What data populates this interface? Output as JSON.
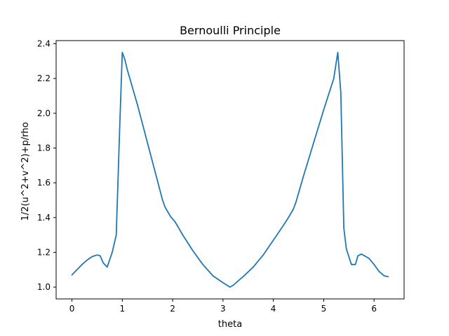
{
  "chart_data": {
    "type": "line",
    "title": "Bernoulli Principle",
    "xlabel": "theta",
    "ylabel": "1/2(u^2+v^2)+p/rho",
    "xlim": [
      -0.314,
      6.597
    ],
    "ylim": [
      0.932,
      2.418
    ],
    "x_ticks": [
      0,
      1,
      2,
      3,
      4,
      5,
      6
    ],
    "x_tick_labels": [
      "0",
      "1",
      "2",
      "3",
      "4",
      "5",
      "6"
    ],
    "y_ticks": [
      1.0,
      1.2,
      1.4,
      1.6,
      1.8,
      2.0,
      2.2,
      2.4
    ],
    "y_tick_labels": [
      "1.0",
      "1.2",
      "1.4",
      "1.6",
      "1.8",
      "2.0",
      "2.2",
      "2.4"
    ],
    "grid": false,
    "legend": "none",
    "series": [
      {
        "color": "#1f77b4",
        "x": [
          0.0,
          0.1,
          0.2,
          0.3,
          0.4,
          0.5,
          0.56,
          0.62,
          0.7,
          0.8,
          0.88,
          0.95,
          1.0,
          1.05,
          1.1,
          1.2,
          1.3,
          1.4,
          1.5,
          1.6,
          1.7,
          1.8,
          1.85,
          1.9,
          1.96,
          2.05,
          2.2,
          2.4,
          2.6,
          2.8,
          3.0,
          3.14,
          3.2,
          3.4,
          3.6,
          3.8,
          4.0,
          4.2,
          4.3,
          4.4,
          4.45,
          4.6,
          4.8,
          5.0,
          5.2,
          5.28,
          5.34,
          5.4,
          5.45,
          5.55,
          5.63,
          5.68,
          5.75,
          5.9,
          6.0,
          6.1,
          6.2,
          6.28
        ],
        "y": [
          1.07,
          1.1,
          1.13,
          1.155,
          1.175,
          1.185,
          1.18,
          1.14,
          1.115,
          1.2,
          1.3,
          1.93,
          2.35,
          2.31,
          2.25,
          2.15,
          2.05,
          1.94,
          1.83,
          1.72,
          1.61,
          1.5,
          1.46,
          1.435,
          1.405,
          1.375,
          1.3,
          1.21,
          1.13,
          1.065,
          1.025,
          1.0,
          1.01,
          1.06,
          1.115,
          1.185,
          1.27,
          1.355,
          1.4,
          1.45,
          1.49,
          1.64,
          1.83,
          2.02,
          2.2,
          2.35,
          2.12,
          1.34,
          1.22,
          1.13,
          1.13,
          1.18,
          1.19,
          1.165,
          1.13,
          1.09,
          1.065,
          1.06
        ]
      }
    ]
  }
}
